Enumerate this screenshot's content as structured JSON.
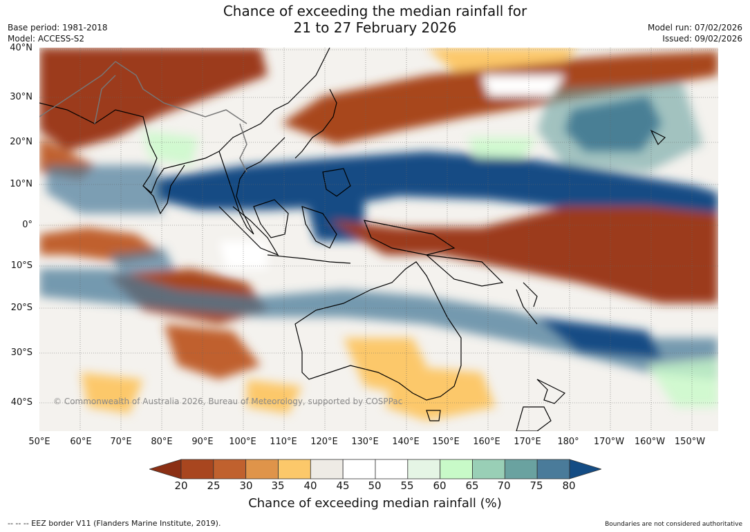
{
  "title_line1": "Chance of exceeding the median rainfall for",
  "title_line2": "21 to 27 February 2026",
  "base_period": "Base period: 1981-2018",
  "model": "Model: ACCESS-S2",
  "model_run": "Model run: 07/02/2026",
  "issued": "Issued: 09/02/2026",
  "lat_labels": [
    "40°N",
    "30°N",
    "20°N",
    "10°N",
    "0°",
    "10°S",
    "20°S",
    "30°S",
    "40°S"
  ],
  "lon_labels": [
    "50°E",
    "60°E",
    "70°E",
    "80°E",
    "90°E",
    "100°E",
    "110°E",
    "120°E",
    "130°E",
    "140°E",
    "150°E",
    "160°E",
    "170°E",
    "180°",
    "170°W",
    "160°W",
    "150°W"
  ],
  "colorbar": {
    "ticks": [
      "20",
      "25",
      "30",
      "35",
      "40",
      "45",
      "50",
      "55",
      "60",
      "65",
      "70",
      "75",
      "80"
    ],
    "colors": [
      "#8b2f14",
      "#a8461f",
      "#c0612e",
      "#df944a",
      "#fcc86a",
      "#eeebe5",
      "#ffffff",
      "#ffffff",
      "#e5f5e5",
      "#c8fac8",
      "#99cfb6",
      "#6aa2a0",
      "#4a7b9a",
      "#144c84"
    ],
    "title": "Chance of exceeding median rainfall (%)"
  },
  "copyright": "© Commonwealth of Australia 2026, Bureau of Meteorology, supported by COSPPac",
  "footer_left": "--  --  -- EEZ border V11 (Flanders Marine Institute, 2019).",
  "footer_right": "Boundaries are not considered authoritative"
}
